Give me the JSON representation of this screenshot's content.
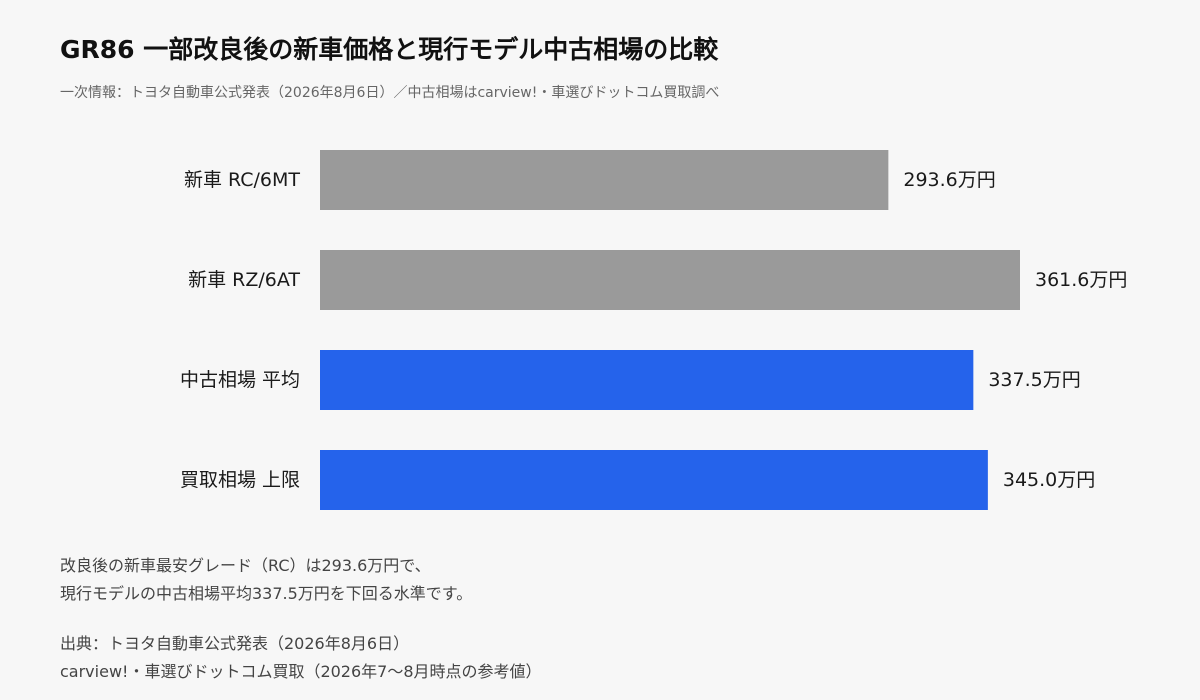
{
  "header": {
    "title": "GR86 一部改良後の新車価格と現行モデル中古相場の比較",
    "subtitle": "一次情報：トヨタ自動車公式発表（2026年8月6日）／中古相場はcarview!・車選びドットコム買取調べ"
  },
  "chart_data": {
    "type": "bar",
    "orientation": "horizontal",
    "categories": [
      "新車 RC/6MT",
      "新車 RZ/6AT",
      "中古相場 平均",
      "買取相場 上限"
    ],
    "values": [
      293.6,
      361.6,
      337.5,
      345.0
    ],
    "value_labels": [
      "293.6万円",
      "361.6万円",
      "337.5万円",
      "345.0万円"
    ],
    "unit": "万円",
    "colors": [
      "#9a9a9a",
      "#9a9a9a",
      "#2563eb",
      "#2563eb"
    ],
    "title": "GR86 一部改良後の新車価格と現行モデル中古相場の比較",
    "xlabel": "",
    "ylabel": "",
    "xlim": [
      0,
      361.6
    ],
    "grid": false,
    "legend": "none"
  },
  "note": {
    "lines": [
      "改良後の新車最安グレード（RC）は293.6万円で、",
      "現行モデルの中古相場平均337.5万円を下回る水準です。"
    ]
  },
  "source": {
    "lines": [
      "出典：トヨタ自動車公式発表（2026年8月6日）",
      "carview!・車選びドットコム買取（2026年7〜8月時点の参考値）"
    ]
  }
}
